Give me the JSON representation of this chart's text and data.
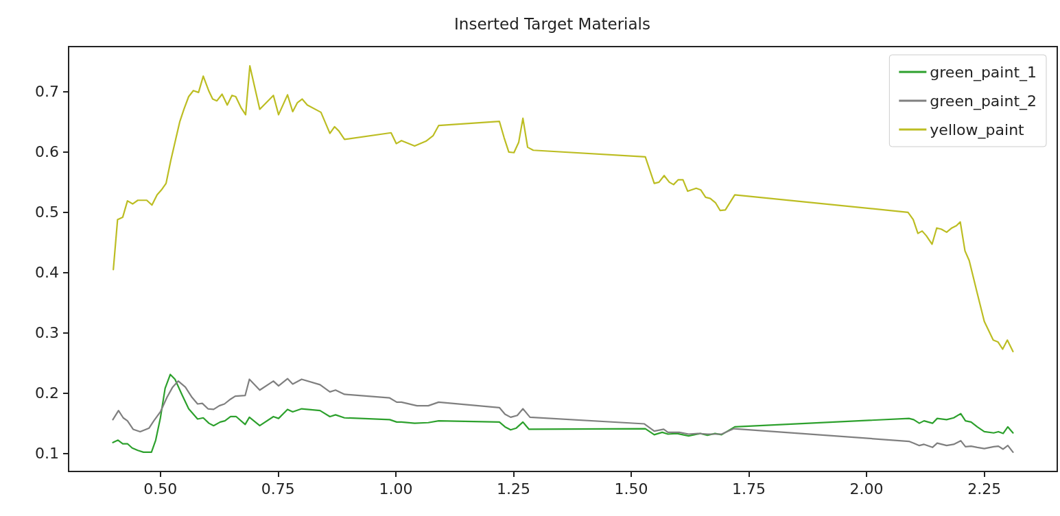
{
  "chart_data": {
    "type": "line",
    "title": "Inserted Target Materials",
    "xlim": [
      0.305,
      2.405
    ],
    "ylim": [
      0.07,
      0.775
    ],
    "xticks": [
      {
        "value": 0.5,
        "label": "0.50"
      },
      {
        "value": 0.75,
        "label": "0.75"
      },
      {
        "value": 1.0,
        "label": "1.00"
      },
      {
        "value": 1.25,
        "label": "1.25"
      },
      {
        "value": 1.5,
        "label": "1.50"
      },
      {
        "value": 1.75,
        "label": "1.75"
      },
      {
        "value": 2.0,
        "label": "2.00"
      },
      {
        "value": 2.25,
        "label": "2.25"
      }
    ],
    "yticks": [
      0.1,
      0.2,
      0.3,
      0.4,
      0.5,
      0.6,
      0.7
    ],
    "grid": false,
    "legend": "top right",
    "marker": "none",
    "line_style": "solid",
    "series": [
      {
        "name": "green_paint_1",
        "color": "#2ca02c",
        "x": [
          0.399,
          0.41,
          0.42,
          0.43,
          0.44,
          0.452,
          0.464,
          0.481,
          0.49,
          0.5,
          0.51,
          0.521,
          0.531,
          0.546,
          0.56,
          0.579,
          0.591,
          0.603,
          0.613,
          0.627,
          0.637,
          0.649,
          0.661,
          0.68,
          0.689,
          0.711,
          0.74,
          0.751,
          0.77,
          0.781,
          0.8,
          0.839,
          0.86,
          0.872,
          0.891,
          0.987,
          1.002,
          1.012,
          1.04,
          1.069,
          1.091,
          1.22,
          1.232,
          1.244,
          1.256,
          1.27,
          1.283,
          1.53,
          1.549,
          1.566,
          1.578,
          1.597,
          1.622,
          1.647,
          1.662,
          1.678,
          1.692,
          1.72,
          2.09,
          2.1,
          2.112,
          2.122,
          2.14,
          2.15,
          2.17,
          2.185,
          2.2,
          2.21,
          2.222,
          2.235,
          2.25,
          2.27,
          2.28,
          2.29,
          2.3,
          2.311
        ],
        "values": [
          0.118,
          0.122,
          0.116,
          0.116,
          0.109,
          0.105,
          0.102,
          0.102,
          0.122,
          0.159,
          0.208,
          0.231,
          0.223,
          0.197,
          0.174,
          0.157,
          0.159,
          0.15,
          0.146,
          0.152,
          0.154,
          0.161,
          0.161,
          0.148,
          0.16,
          0.146,
          0.161,
          0.158,
          0.173,
          0.169,
          0.174,
          0.171,
          0.161,
          0.164,
          0.159,
          0.156,
          0.152,
          0.152,
          0.15,
          0.151,
          0.154,
          0.152,
          0.144,
          0.139,
          0.142,
          0.152,
          0.14,
          0.141,
          0.131,
          0.135,
          0.132,
          0.133,
          0.129,
          0.133,
          0.13,
          0.133,
          0.131,
          0.144,
          0.158,
          0.156,
          0.15,
          0.154,
          0.15,
          0.158,
          0.156,
          0.159,
          0.166,
          0.154,
          0.152,
          0.144,
          0.136,
          0.134,
          0.136,
          0.133,
          0.144,
          0.134
        ]
      },
      {
        "name": "green_paint_2",
        "color": "#7f7f7f",
        "x": [
          0.399,
          0.411,
          0.421,
          0.43,
          0.442,
          0.457,
          0.476,
          0.486,
          0.5,
          0.514,
          0.526,
          0.538,
          0.553,
          0.567,
          0.579,
          0.589,
          0.601,
          0.613,
          0.625,
          0.636,
          0.649,
          0.659,
          0.68,
          0.689,
          0.711,
          0.74,
          0.751,
          0.77,
          0.781,
          0.8,
          0.839,
          0.86,
          0.872,
          0.891,
          0.987,
          1.002,
          1.012,
          1.045,
          1.069,
          1.091,
          1.22,
          1.232,
          1.244,
          1.258,
          1.27,
          1.285,
          1.528,
          1.549,
          1.569,
          1.578,
          1.602,
          1.622,
          1.642,
          1.662,
          1.692,
          1.718,
          2.09,
          2.1,
          2.112,
          2.122,
          2.14,
          2.15,
          2.17,
          2.185,
          2.2,
          2.21,
          2.222,
          2.235,
          2.25,
          2.27,
          2.28,
          2.29,
          2.3,
          2.311
        ],
        "values": [
          0.156,
          0.171,
          0.159,
          0.154,
          0.14,
          0.136,
          0.142,
          0.154,
          0.169,
          0.193,
          0.21,
          0.22,
          0.21,
          0.193,
          0.182,
          0.183,
          0.174,
          0.173,
          0.179,
          0.182,
          0.19,
          0.195,
          0.196,
          0.223,
          0.205,
          0.22,
          0.212,
          0.224,
          0.215,
          0.223,
          0.214,
          0.202,
          0.205,
          0.198,
          0.192,
          0.185,
          0.185,
          0.179,
          0.179,
          0.185,
          0.176,
          0.165,
          0.16,
          0.163,
          0.174,
          0.16,
          0.149,
          0.137,
          0.14,
          0.135,
          0.135,
          0.132,
          0.133,
          0.132,
          0.132,
          0.141,
          0.12,
          0.117,
          0.113,
          0.115,
          0.11,
          0.117,
          0.113,
          0.115,
          0.121,
          0.111,
          0.112,
          0.11,
          0.108,
          0.111,
          0.112,
          0.107,
          0.113,
          0.102
        ]
      },
      {
        "name": "yellow_paint",
        "color": "#bcbd22",
        "x": [
          0.4,
          0.409,
          0.42,
          0.43,
          0.441,
          0.452,
          0.471,
          0.482,
          0.493,
          0.502,
          0.512,
          0.522,
          0.541,
          0.55,
          0.56,
          0.57,
          0.581,
          0.591,
          0.603,
          0.611,
          0.62,
          0.631,
          0.642,
          0.652,
          0.66,
          0.671,
          0.681,
          0.69,
          0.711,
          0.74,
          0.751,
          0.77,
          0.781,
          0.791,
          0.801,
          0.812,
          0.841,
          0.86,
          0.87,
          0.879,
          0.891,
          0.99,
          1.001,
          1.012,
          1.04,
          1.064,
          1.079,
          1.091,
          1.22,
          1.23,
          1.24,
          1.251,
          1.261,
          1.27,
          1.28,
          1.292,
          1.53,
          1.549,
          1.559,
          1.57,
          1.581,
          1.59,
          1.6,
          1.61,
          1.62,
          1.638,
          1.648,
          1.658,
          1.668,
          1.679,
          1.689,
          1.7,
          1.72,
          2.088,
          2.099,
          2.109,
          2.118,
          2.127,
          2.139,
          2.149,
          2.159,
          2.17,
          2.181,
          2.191,
          2.199,
          2.209,
          2.218,
          2.235,
          2.25,
          2.269,
          2.279,
          2.289,
          2.299,
          2.311
        ],
        "values": [
          0.405,
          0.488,
          0.492,
          0.519,
          0.514,
          0.52,
          0.52,
          0.512,
          0.529,
          0.537,
          0.548,
          0.586,
          0.65,
          0.671,
          0.692,
          0.702,
          0.699,
          0.726,
          0.701,
          0.688,
          0.685,
          0.696,
          0.678,
          0.694,
          0.692,
          0.674,
          0.662,
          0.743,
          0.671,
          0.694,
          0.662,
          0.695,
          0.667,
          0.682,
          0.688,
          0.678,
          0.666,
          0.631,
          0.642,
          0.635,
          0.621,
          0.632,
          0.614,
          0.619,
          0.61,
          0.618,
          0.627,
          0.644,
          0.651,
          0.624,
          0.6,
          0.599,
          0.616,
          0.656,
          0.608,
          0.603,
          0.592,
          0.548,
          0.55,
          0.561,
          0.55,
          0.546,
          0.554,
          0.554,
          0.535,
          0.54,
          0.537,
          0.525,
          0.523,
          0.516,
          0.503,
          0.504,
          0.529,
          0.5,
          0.488,
          0.465,
          0.469,
          0.461,
          0.447,
          0.474,
          0.472,
          0.467,
          0.474,
          0.478,
          0.484,
          0.436,
          0.42,
          0.366,
          0.319,
          0.288,
          0.285,
          0.273,
          0.288,
          0.269
        ]
      }
    ]
  }
}
